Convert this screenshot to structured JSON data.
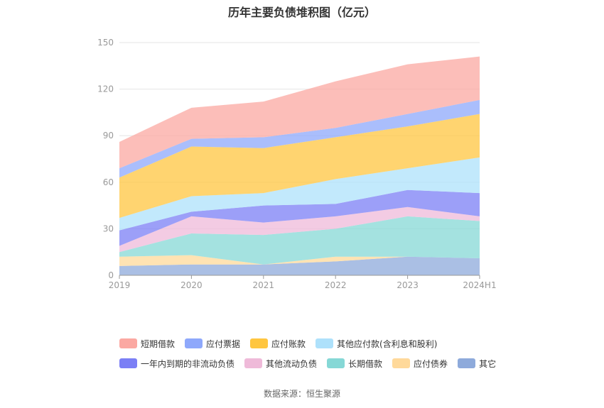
{
  "title": "历年主要负债堆积图（亿元）",
  "source": "数据来源：恒生聚源",
  "chart_data": {
    "type": "area",
    "stacked": true,
    "title": "历年主要负债堆积图（亿元）",
    "categories": [
      "2019",
      "2020",
      "2021",
      "2022",
      "2023",
      "2024H1"
    ],
    "ylim": [
      0,
      150
    ],
    "yticks": [
      0,
      30,
      60,
      90,
      120,
      150
    ],
    "grid": true,
    "legend_position": "bottom",
    "series": [
      {
        "name": "其它",
        "color": "#8eaadb",
        "values": [
          6,
          7,
          7,
          9,
          12,
          11
        ]
      },
      {
        "name": "应付债券",
        "color": "#ffd99a",
        "values": [
          6,
          6,
          0,
          3,
          0,
          0
        ]
      },
      {
        "name": "长期借款",
        "color": "#86d8d6",
        "values": [
          3,
          14,
          19,
          18,
          26,
          24
        ]
      },
      {
        "name": "其他流动负债",
        "color": "#efbad9",
        "values": [
          4,
          11,
          8,
          8,
          6,
          3
        ]
      },
      {
        "name": "一年内到期的非流动负债",
        "color": "#7b7ff5",
        "values": [
          10,
          3,
          11,
          8,
          11,
          15
        ]
      },
      {
        "name": "其他应付款(含利息和股利)",
        "color": "#aee1fb",
        "values": [
          8,
          10,
          8,
          16,
          14,
          23
        ]
      },
      {
        "name": "应付账款",
        "color": "#ffc640",
        "values": [
          26,
          32,
          29,
          27,
          27,
          28
        ]
      },
      {
        "name": "应付票据",
        "color": "#8ea8fb",
        "values": [
          6,
          5,
          7,
          6,
          8,
          9
        ]
      },
      {
        "name": "短期借款",
        "color": "#fba8a2",
        "values": [
          17,
          20,
          23,
          30,
          32,
          28
        ]
      }
    ]
  },
  "legend_rows": [
    [
      {
        "label": "短期借款",
        "color": "#fba8a2"
      },
      {
        "label": "应付票据",
        "color": "#8ea8fb"
      },
      {
        "label": "应付账款",
        "color": "#ffc640"
      },
      {
        "label": "其他应付款(含利息和股利)",
        "color": "#aee1fb"
      }
    ],
    [
      {
        "label": "一年内到期的非流动负债",
        "color": "#7b7ff5"
      },
      {
        "label": "其他流动负债",
        "color": "#efbad9"
      },
      {
        "label": "长期借款",
        "color": "#86d8d6"
      },
      {
        "label": "应付债券",
        "color": "#ffd99a"
      },
      {
        "label": "其它",
        "color": "#8eaadb"
      }
    ]
  ]
}
